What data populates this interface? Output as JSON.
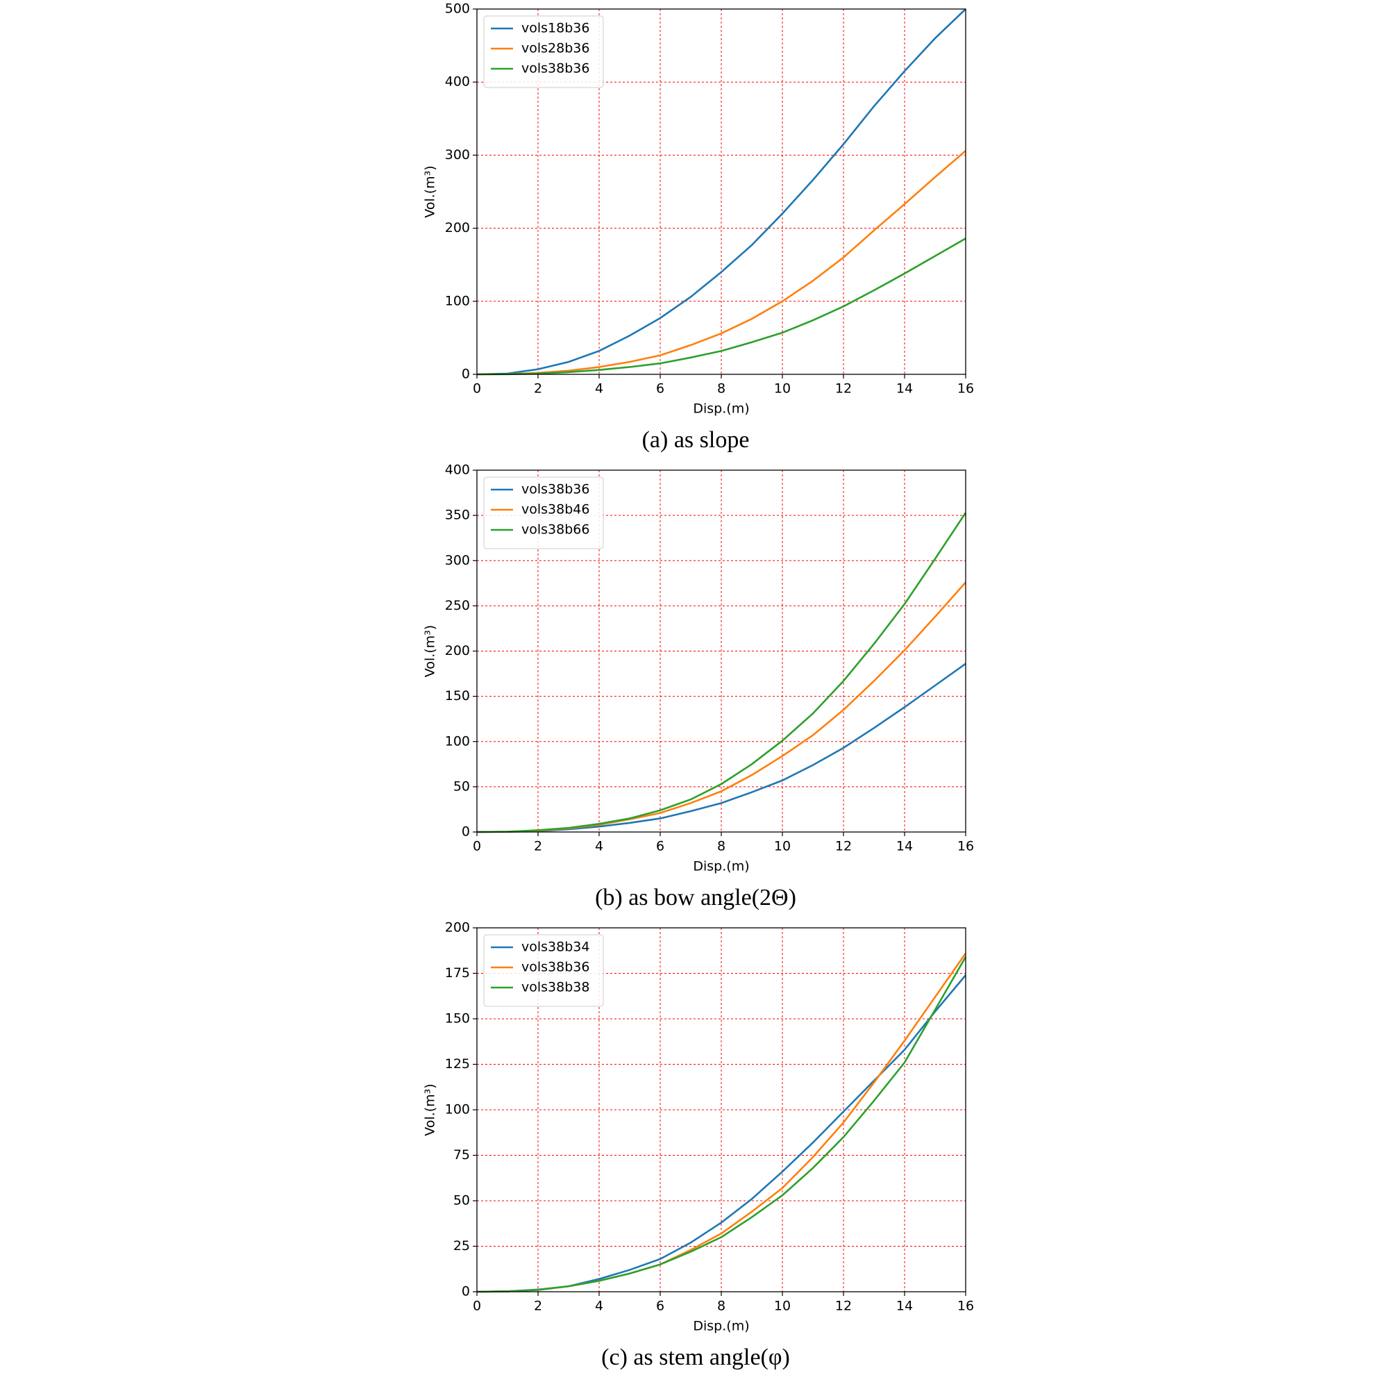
{
  "chart_data": [
    {
      "type": "line",
      "caption": "(a) as slope",
      "x_label": "Disp.(m)",
      "y_label": "Vol.(m³)",
      "x": [
        0,
        1,
        2,
        3,
        4,
        5,
        6,
        7,
        8,
        9,
        10,
        11,
        12,
        13,
        14,
        15,
        16
      ],
      "xlim": [
        0,
        16
      ],
      "xticks": [
        0,
        2,
        4,
        6,
        8,
        10,
        12,
        14,
        16
      ],
      "ylim": [
        0,
        500
      ],
      "yticks": [
        0,
        100,
        200,
        300,
        400,
        500
      ],
      "grid": true,
      "legend": "upper-left",
      "series": [
        {
          "name": "vols18b36",
          "color": "#1f77b4",
          "values": [
            0,
            1,
            7,
            17,
            32,
            53,
            77,
            106,
            140,
            177,
            220,
            266,
            315,
            367,
            415,
            460,
            500
          ]
        },
        {
          "name": "vols28b36",
          "color": "#ff7f0e",
          "values": [
            0,
            0.3,
            2,
            5,
            10,
            17,
            26,
            40,
            56,
            76,
            100,
            128,
            160,
            197,
            233,
            270,
            306
          ]
        },
        {
          "name": "vols38b36",
          "color": "#2ca02c",
          "values": [
            0,
            0.2,
            1,
            3,
            6,
            10,
            15,
            23,
            32,
            44,
            57,
            74,
            93,
            115,
            138,
            162,
            186
          ]
        }
      ]
    },
    {
      "type": "line",
      "caption": "(b) as bow angle(2Θ)",
      "x_label": "Disp.(m)",
      "y_label": "Vol.(m³)",
      "x": [
        0,
        1,
        2,
        3,
        4,
        5,
        6,
        7,
        8,
        9,
        10,
        11,
        12,
        13,
        14,
        15,
        16
      ],
      "xlim": [
        0,
        16
      ],
      "xticks": [
        0,
        2,
        4,
        6,
        8,
        10,
        12,
        14,
        16
      ],
      "ylim": [
        0,
        400
      ],
      "yticks": [
        0,
        50,
        100,
        150,
        200,
        250,
        300,
        350,
        400
      ],
      "grid": true,
      "legend": "upper-left",
      "series": [
        {
          "name": "vols38b36",
          "color": "#1f77b4",
          "values": [
            0,
            0.2,
            1,
            3,
            6,
            10,
            15,
            23,
            32,
            44,
            57,
            74,
            93,
            115,
            138,
            162,
            186
          ]
        },
        {
          "name": "vols38b46",
          "color": "#ff7f0e",
          "values": [
            0,
            0.3,
            1.5,
            4,
            8,
            14,
            21,
            32,
            45,
            63,
            84,
            107,
            135,
            167,
            201,
            238,
            276
          ]
        },
        {
          "name": "vols38b66",
          "color": "#2ca02c",
          "values": [
            0,
            0.3,
            2,
            4.5,
            9,
            15,
            24,
            36,
            53,
            75,
            101,
            131,
            167,
            208,
            252,
            302,
            353
          ]
        }
      ]
    },
    {
      "type": "line",
      "caption": "(c) as stem angle(φ)",
      "x_label": "Disp.(m)",
      "y_label": "Vol.(m³)",
      "x": [
        0,
        1,
        2,
        3,
        4,
        5,
        6,
        7,
        8,
        9,
        10,
        11,
        12,
        13,
        14,
        15,
        16
      ],
      "xlim": [
        0,
        16
      ],
      "xticks": [
        0,
        2,
        4,
        6,
        8,
        10,
        12,
        14,
        16
      ],
      "ylim": [
        0,
        200
      ],
      "yticks": [
        0,
        25,
        50,
        75,
        100,
        125,
        150,
        175,
        200
      ],
      "grid": true,
      "legend": "upper-left",
      "series": [
        {
          "name": "vols38b34",
          "color": "#1f77b4",
          "values": [
            0,
            0.2,
            1.2,
            3,
            7,
            12,
            18,
            27,
            38,
            51,
            66,
            82,
            99,
            116,
            133,
            154,
            174
          ]
        },
        {
          "name": "vols38b36",
          "color": "#ff7f0e",
          "values": [
            0,
            0.2,
            1,
            3,
            6,
            10,
            15,
            23,
            32,
            44,
            57,
            74,
            93,
            115,
            138,
            162,
            186
          ]
        },
        {
          "name": "vols38b38",
          "color": "#2ca02c",
          "values": [
            0,
            0.2,
            1,
            3,
            6,
            10,
            15,
            22,
            30,
            41,
            53,
            68,
            85,
            105,
            126,
            155,
            184
          ]
        }
      ]
    }
  ]
}
